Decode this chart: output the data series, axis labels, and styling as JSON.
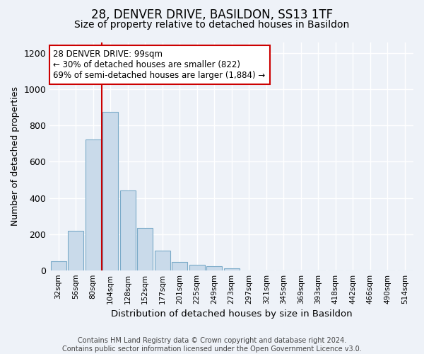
{
  "title1": "28, DENVER DRIVE, BASILDON, SS13 1TF",
  "title2": "Size of property relative to detached houses in Basildon",
  "xlabel": "Distribution of detached houses by size in Basildon",
  "ylabel": "Number of detached properties",
  "bar_labels": [
    "32sqm",
    "56sqm",
    "80sqm",
    "104sqm",
    "128sqm",
    "152sqm",
    "177sqm",
    "201sqm",
    "225sqm",
    "249sqm",
    "273sqm",
    "297sqm",
    "321sqm",
    "345sqm",
    "369sqm",
    "393sqm",
    "418sqm",
    "442sqm",
    "466sqm",
    "490sqm",
    "514sqm"
  ],
  "bar_values": [
    50,
    218,
    725,
    878,
    440,
    232,
    107,
    47,
    32,
    22,
    10,
    0,
    0,
    0,
    0,
    0,
    0,
    0,
    0,
    0,
    0
  ],
  "bar_color": "#c9daea",
  "bar_edge_color": "#7aaac8",
  "vline_x": 2.5,
  "vline_color": "#cc0000",
  "annotation_text": "28 DENVER DRIVE: 99sqm\n← 30% of detached houses are smaller (822)\n69% of semi-detached houses are larger (1,884) →",
  "annotation_box_color": "#ffffff",
  "annotation_box_edge_color": "#cc0000",
  "ylim": [
    0,
    1260
  ],
  "yticks": [
    0,
    200,
    400,
    600,
    800,
    1000,
    1200
  ],
  "footer": "Contains HM Land Registry data © Crown copyright and database right 2024.\nContains public sector information licensed under the Open Government Licence v3.0.",
  "bg_color": "#eef2f8",
  "plot_bg_color": "#eef2f8",
  "grid_color": "#ffffff",
  "title1_fontsize": 12,
  "title2_fontsize": 10,
  "xlabel_fontsize": 9.5,
  "ylabel_fontsize": 9,
  "footer_fontsize": 7,
  "annotation_fontsize": 8.5
}
